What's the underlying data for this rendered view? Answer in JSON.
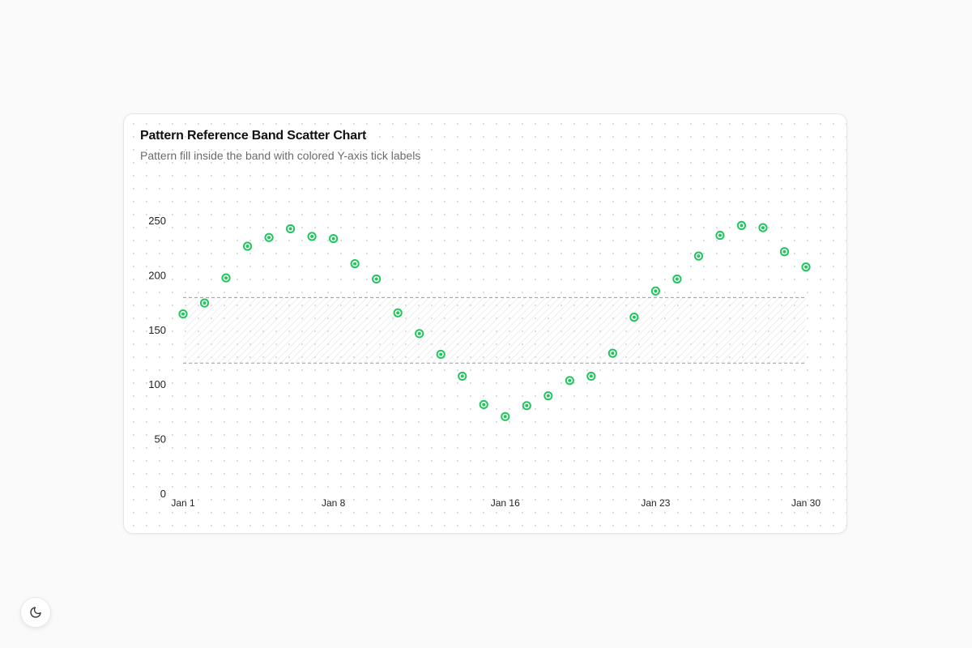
{
  "card": {
    "title": "Pattern Reference Band Scatter Chart",
    "subtitle": "Pattern fill inside the band with colored Y-axis tick labels"
  },
  "theme_toggle": {
    "icon": "moon-icon"
  },
  "chart_data": {
    "type": "scatter",
    "title": "Pattern Reference Band Scatter Chart",
    "subtitle": "Pattern fill inside the band with colored Y-axis tick labels",
    "xlabel": "",
    "ylabel": "",
    "x": [
      "Jan 1",
      "Jan 2",
      "Jan 3",
      "Jan 4",
      "Jan 5",
      "Jan 6",
      "Jan 7",
      "Jan 8",
      "Jan 9",
      "Jan 10",
      "Jan 11",
      "Jan 12",
      "Jan 13",
      "Jan 14",
      "Jan 15",
      "Jan 16",
      "Jan 17",
      "Jan 18",
      "Jan 19",
      "Jan 20",
      "Jan 21",
      "Jan 22",
      "Jan 23",
      "Jan 24",
      "Jan 25",
      "Jan 26",
      "Jan 27",
      "Jan 28",
      "Jan 29",
      "Jan 30"
    ],
    "x_tick_labels": [
      "Jan 1",
      "Jan 8",
      "Jan 16",
      "Jan 23",
      "Jan 30"
    ],
    "series": [
      {
        "values": [
          165,
          175,
          198,
          227,
          235,
          243,
          236,
          234,
          211,
          197,
          166,
          147,
          128,
          108,
          82,
          71,
          81,
          90,
          104,
          108,
          129,
          162,
          186,
          197,
          218,
          237,
          246,
          244,
          222,
          208
        ]
      }
    ],
    "ylim": [
      0,
      250
    ],
    "y_ticks": [
      0,
      50,
      100,
      150,
      200,
      250
    ],
    "reference_band": {
      "y1": 120,
      "y2": 180,
      "fill": "pattern",
      "stroke": "dashed"
    },
    "grid": false,
    "legend": "none",
    "colors": {
      "point": "#22c55e",
      "band_line": "#9a9a9a",
      "tick_label": "#222222"
    }
  }
}
